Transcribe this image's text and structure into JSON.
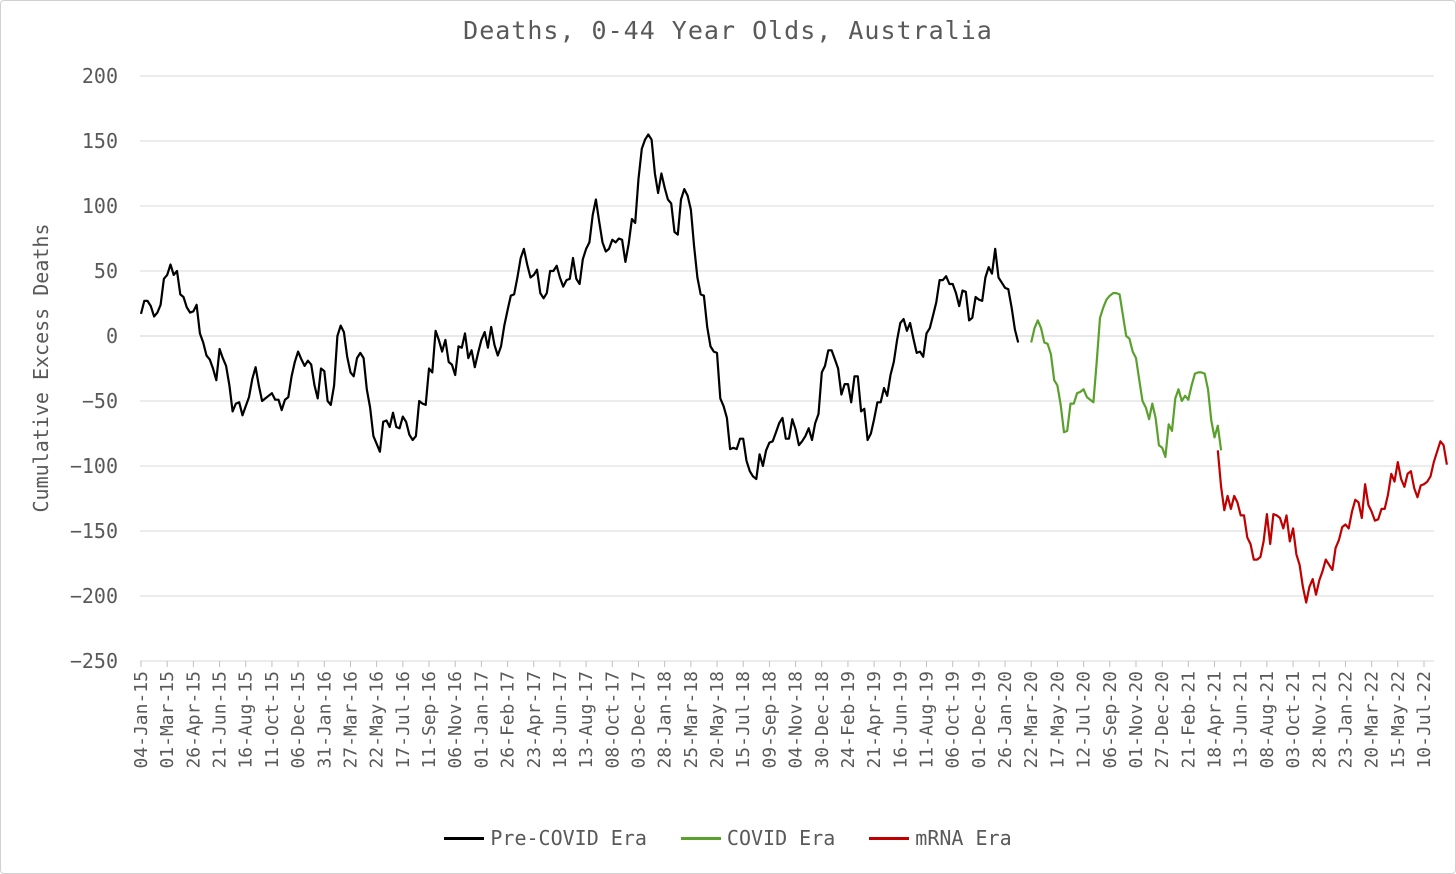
{
  "chart_data": {
    "type": "line",
    "title": "Deaths, 0-44 Year Olds, Australia",
    "ylabel": "Cumulative Excess Deaths",
    "xlabel": "",
    "ylim": [
      -250,
      200
    ],
    "ytick_step": 50,
    "y_tick_labels": [
      "200",
      "150",
      "100",
      "50",
      "0",
      "-50",
      "-100",
      "-150",
      "-200",
      "-250"
    ],
    "x_tick_labels": [
      "04-Jan-15",
      "01-Mar-15",
      "26-Apr-15",
      "21-Jun-15",
      "16-Aug-15",
      "11-Oct-15",
      "06-Dec-15",
      "31-Jan-16",
      "27-Mar-16",
      "22-May-16",
      "17-Jul-16",
      "11-Sep-16",
      "06-Nov-16",
      "01-Jan-17",
      "26-Feb-17",
      "23-Apr-17",
      "18-Jun-17",
      "13-Aug-17",
      "08-Oct-17",
      "03-Dec-17",
      "28-Jan-18",
      "25-Mar-18",
      "20-May-18",
      "15-Jul-18",
      "09-Sep-18",
      "04-Nov-18",
      "30-Dec-18",
      "24-Feb-19",
      "21-Apr-19",
      "16-Jun-19",
      "11-Aug-19",
      "06-Oct-19",
      "01-Dec-19",
      "26-Jan-20",
      "22-Mar-20",
      "17-May-20",
      "12-Jul-20",
      "06-Sep-20",
      "01-Nov-20",
      "27-Dec-20",
      "21-Feb-21",
      "18-Apr-21",
      "13-Jun-21",
      "08-Aug-21",
      "03-Oct-21",
      "28-Nov-21",
      "23-Jan-22",
      "20-Mar-22",
      "15-May-22",
      "10-Jul-22"
    ],
    "gridlines": true,
    "legend_position": "bottom",
    "series": [
      {
        "name": "Pre-COVID Era",
        "color": "#000000",
        "x_start": "04-Jan-15",
        "values": [
          17,
          27,
          27,
          23,
          15,
          18,
          24,
          44,
          47,
          55,
          47,
          50,
          32,
          30,
          22,
          18,
          19,
          24,
          2,
          -5,
          -15,
          -18,
          -25,
          -34,
          -10,
          -17,
          -23,
          -38,
          -58,
          -52,
          -51,
          -61,
          -54,
          -47,
          -33,
          -24,
          -38,
          -50,
          -48,
          -46,
          -44,
          -49,
          -49,
          -57,
          -49,
          -47,
          -31,
          -20,
          -12,
          -18,
          -23,
          -19,
          -22,
          -38,
          -48,
          -25,
          -27,
          -50,
          -53,
          -38,
          0,
          8,
          3,
          -16,
          -28,
          -31,
          -17,
          -13,
          -17,
          -41,
          -55,
          -77,
          -83,
          -89,
          -66,
          -65,
          -70,
          -59,
          -70,
          -71,
          -62,
          -66,
          -76,
          -80,
          -77,
          -50,
          -52,
          -53,
          -25,
          -28,
          4,
          -3,
          -12,
          -3,
          -20,
          -22,
          -30,
          -8,
          -9,
          2,
          -17,
          -11,
          -24,
          -13,
          -3,
          3,
          -9,
          7,
          -7,
          -15,
          -8,
          8,
          20,
          31,
          32,
          45,
          60,
          67,
          55,
          45,
          47,
          51,
          33,
          29,
          33,
          50,
          50,
          54,
          45,
          38,
          43,
          44,
          60,
          44,
          40,
          59,
          67,
          72,
          93,
          105,
          88,
          72,
          65,
          67,
          74,
          72,
          75,
          74,
          57,
          71,
          90,
          87,
          121,
          144,
          151,
          155,
          151,
          125,
          110,
          125,
          114,
          105,
          102,
          80,
          78,
          105,
          113,
          108,
          97,
          69,
          45,
          32,
          31,
          7,
          -8,
          -12,
          -13,
          -48,
          -54,
          -63,
          -87,
          -86,
          -87,
          -79,
          -79,
          -96,
          -104,
          -108,
          -110,
          -91,
          -100,
          -88,
          -82,
          -81,
          -74,
          -67,
          -63,
          -79,
          -79,
          -64,
          -72,
          -84,
          -81,
          -77,
          -71,
          -80,
          -67,
          -60,
          -28,
          -23,
          -11,
          -11,
          -18,
          -25,
          -45,
          -37,
          -37,
          -51,
          -31,
          -31,
          -58,
          -56,
          -80,
          -75,
          -64,
          -51,
          -51,
          -40,
          -46,
          -30,
          -20,
          -3,
          10,
          13,
          4,
          10,
          -2,
          -13,
          -12,
          -16,
          2,
          6,
          16,
          26,
          43,
          43,
          46,
          40,
          40,
          33,
          23,
          35,
          34,
          12,
          14,
          30,
          28,
          27,
          45,
          53,
          48,
          67,
          45,
          41,
          37,
          36,
          22,
          5,
          -5
        ]
      },
      {
        "name": "COVID Era",
        "color": "#5aa02c",
        "x_start": "22-Mar-20",
        "values": [
          -5,
          6,
          12,
          6,
          -5,
          -6,
          -14,
          -34,
          -38,
          -53,
          -74,
          -73,
          -52,
          -52,
          -44,
          -43,
          -41,
          -47,
          -49,
          -51,
          -20,
          14,
          22,
          28,
          31,
          33,
          33,
          32,
          16,
          0,
          -2,
          -12,
          -17,
          -34,
          -50,
          -55,
          -64,
          -52,
          -63,
          -84,
          -86,
          -93,
          -68,
          -73,
          -48,
          -41,
          -50,
          -46,
          -49,
          -38,
          -29,
          -28,
          -28,
          -29,
          -41,
          -65,
          -78,
          -69,
          -88
        ]
      },
      {
        "name": "mRNA Era",
        "color": "#c00000",
        "x_start": "25-Apr-21",
        "values": [
          -88,
          -116,
          -134,
          -123,
          -133,
          -123,
          -128,
          -138,
          -138,
          -155,
          -160,
          -172,
          -172,
          -170,
          -158,
          -137,
          -160,
          -137,
          -138,
          -140,
          -148,
          -138,
          -158,
          -148,
          -168,
          -176,
          -193,
          -205,
          -193,
          -187,
          -199,
          -188,
          -181,
          -172,
          -176,
          -180,
          -163,
          -157,
          -147,
          -145,
          -148,
          -135,
          -126,
          -128,
          -140,
          -114,
          -130,
          -135,
          -142,
          -141,
          -133,
          -133,
          -122,
          -106,
          -112,
          -97,
          -110,
          -116,
          -106,
          -104,
          -117,
          -124,
          -115,
          -114,
          -112,
          -108,
          -97,
          -89,
          -81,
          -84,
          -99
        ]
      }
    ]
  }
}
